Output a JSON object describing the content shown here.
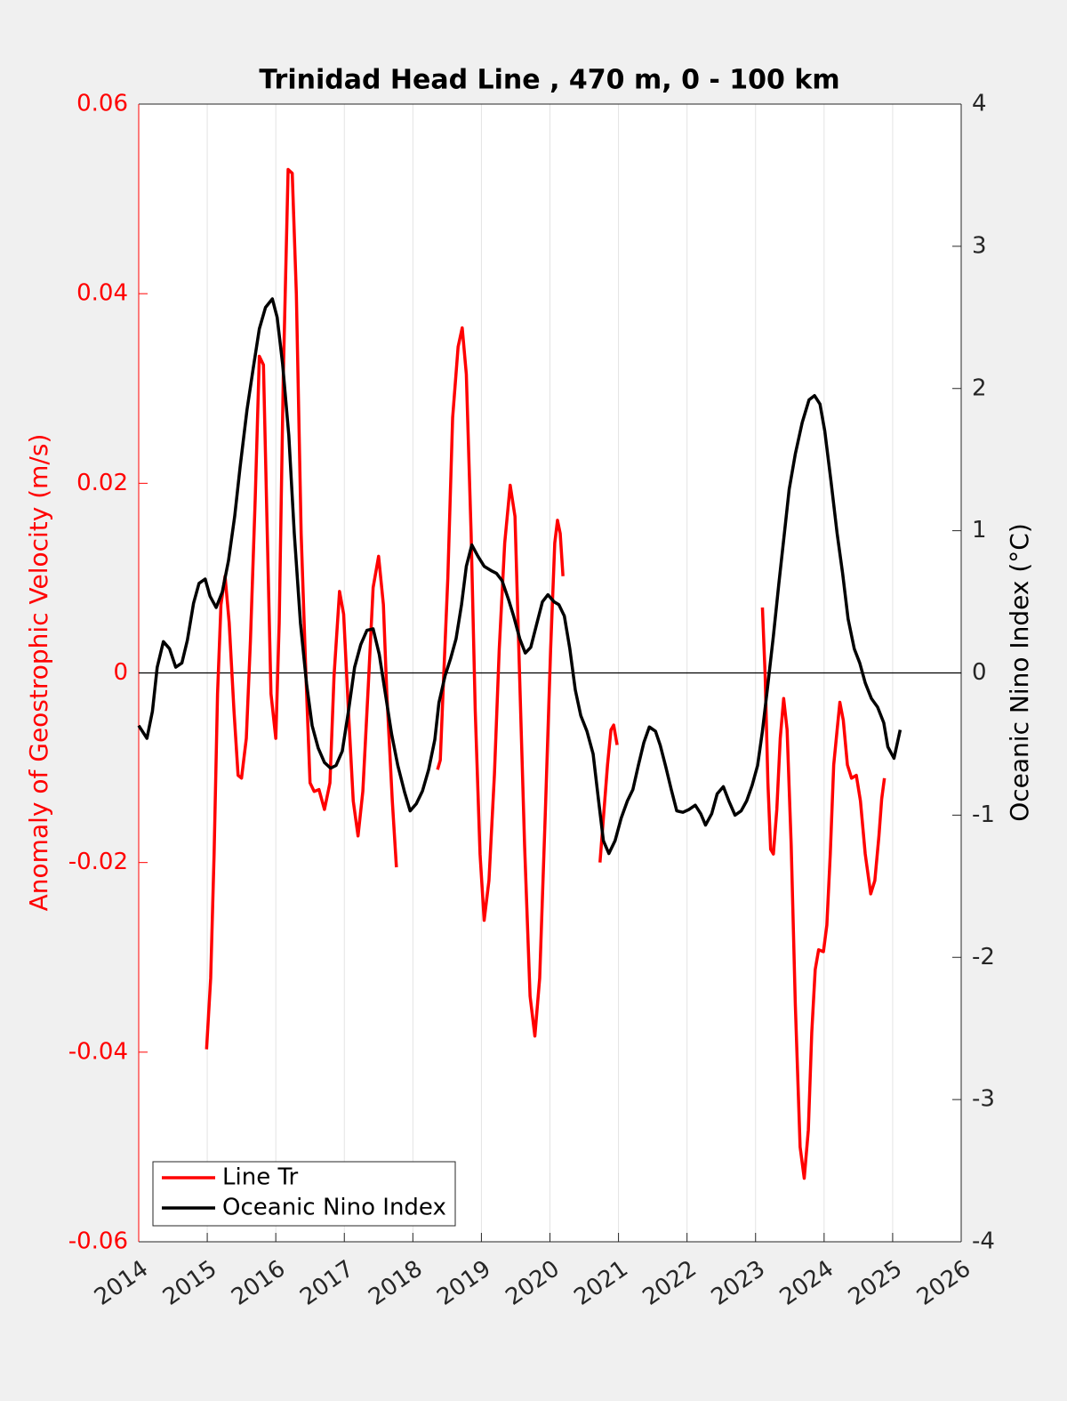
{
  "chart_data": {
    "type": "line",
    "title": "Trinidad Head Line , 470 m, 0 - 100 km",
    "ylabel": "Anomaly of Geostrophic Velocity (m/s)",
    "y2label": "Oceanic Nino Index (°C)",
    "xlim": [
      2014,
      2026
    ],
    "xticks": [
      2014,
      2015,
      2016,
      2017,
      2018,
      2019,
      2020,
      2021,
      2022,
      2023,
      2024,
      2025,
      2026
    ],
    "ylim": [
      -0.06,
      0.06
    ],
    "yticks": [
      -0.06,
      -0.04,
      -0.02,
      0,
      0.02,
      0.04,
      0.06
    ],
    "y2lim": [
      -4,
      4
    ],
    "y2ticks": [
      -4,
      -3,
      -2,
      -1,
      0,
      1,
      2,
      3,
      4
    ],
    "yaxis_color": "#ff0000",
    "reference_line": 0,
    "grid": "x",
    "legend": "lower left",
    "series": [
      {
        "name": "Line Tr",
        "color": "#ff0000",
        "x": [
          2014.99,
          2015.05,
          2015.1,
          2015.15,
          2015.2,
          2015.26,
          2015.32,
          2015.39,
          2015.45,
          2015.5,
          2015.57,
          2015.63,
          2015.7,
          2015.76,
          2015.82,
          2015.87,
          2015.93,
          2016.0,
          2016.05,
          2016.11,
          2016.18,
          2016.24,
          2016.3,
          2016.37,
          2016.44,
          2016.5,
          2016.56,
          2016.63,
          2016.71,
          2016.79,
          2016.85,
          2016.93,
          2016.99,
          2017.06,
          2017.13,
          2017.2,
          2017.27,
          2017.35,
          2017.42,
          2017.5,
          2017.57,
          2017.62,
          2017.7,
          2017.76,
          2018.0,
          2018.36,
          2018.4,
          2018.45,
          2018.51,
          2018.58,
          2018.66,
          2018.72,
          2018.78,
          2018.85,
          2018.91,
          2018.98,
          2019.04,
          2019.11,
          2019.19,
          2019.26,
          2019.34,
          2019.42,
          2019.49,
          2019.55,
          2019.63,
          2019.71,
          2019.78,
          2019.85,
          2019.93,
          2020.01,
          2020.07,
          2020.11,
          2020.15,
          2020.19,
          2020.4,
          2020.73,
          2020.78,
          2020.84,
          2020.89,
          2020.93,
          2020.98,
          2022.0,
          2023.1,
          2023.14,
          2023.18,
          2023.22,
          2023.26,
          2023.31,
          2023.36,
          2023.41,
          2023.46,
          2023.52,
          2023.58,
          2023.65,
          2023.71,
          2023.77,
          2023.82,
          2023.87,
          2023.92,
          2023.99,
          2024.04,
          2024.09,
          2024.14,
          2024.19,
          2024.23,
          2024.28,
          2024.34,
          2024.4,
          2024.47,
          2024.53,
          2024.6,
          2024.68,
          2024.74,
          2024.8,
          2024.84,
          2024.88
        ],
        "values": [
          -0.0397,
          -0.0322,
          -0.0191,
          -0.0022,
          0.0072,
          0.0102,
          0.0053,
          -0.004,
          -0.0108,
          -0.0111,
          -0.0069,
          0.0034,
          0.0184,
          0.0334,
          0.0325,
          0.0165,
          -0.0022,
          -0.0069,
          0.0053,
          0.0315,
          0.0531,
          0.0527,
          0.04,
          0.0147,
          -0.0003,
          -0.0116,
          -0.0125,
          -0.0123,
          -0.0144,
          -0.0116,
          -0.0003,
          0.0086,
          0.0062,
          -0.004,
          -0.0135,
          -0.0172,
          -0.0125,
          -0.0013,
          0.009,
          0.0123,
          0.0072,
          -0.0022,
          -0.0135,
          -0.0205,
          null,
          -0.0102,
          -0.0092,
          -0.0003,
          0.01,
          0.0269,
          0.0344,
          0.0364,
          0.0315,
          0.0147,
          -0.004,
          -0.0191,
          -0.0261,
          -0.0219,
          -0.0107,
          0.0025,
          0.0137,
          0.0198,
          0.0165,
          0.0015,
          -0.0182,
          -0.0341,
          -0.0383,
          -0.0322,
          -0.0153,
          0.0025,
          0.0137,
          0.0161,
          0.0147,
          0.0102,
          null,
          -0.02,
          -0.0153,
          -0.0097,
          -0.006,
          -0.0055,
          -0.0076,
          null,
          0.0069,
          -0.0003,
          -0.0116,
          -0.0186,
          -0.0191,
          -0.0144,
          -0.0069,
          -0.0027,
          -0.006,
          -0.0182,
          -0.035,
          -0.05,
          -0.0533,
          -0.0482,
          -0.0379,
          -0.0313,
          -0.0292,
          -0.0294,
          -0.0266,
          -0.0191,
          -0.0097,
          -0.006,
          -0.0031,
          -0.005,
          -0.0097,
          -0.0111,
          -0.0108,
          -0.0135,
          -0.0191,
          -0.0233,
          -0.0219,
          -0.0172,
          -0.0133,
          -0.0111
        ]
      },
      {
        "name": "Oceanic Nino Index",
        "color": "#000000",
        "axis": "y2",
        "x": [
          2014.0,
          2014.12,
          2014.2,
          2014.27,
          2014.36,
          2014.45,
          2014.54,
          2014.63,
          2014.71,
          2014.8,
          2014.88,
          2014.97,
          2015.04,
          2015.13,
          2015.22,
          2015.31,
          2015.4,
          2015.48,
          2015.58,
          2015.67,
          2015.76,
          2015.85,
          2015.95,
          2016.02,
          2016.1,
          2016.19,
          2016.27,
          2016.36,
          2016.45,
          2016.53,
          2016.62,
          2016.71,
          2016.8,
          2016.88,
          2016.97,
          2017.06,
          2017.15,
          2017.24,
          2017.33,
          2017.42,
          2017.51,
          2017.6,
          2017.69,
          2017.78,
          2017.88,
          2017.96,
          2018.05,
          2018.14,
          2018.23,
          2018.32,
          2018.38,
          2018.47,
          2018.55,
          2018.63,
          2018.71,
          2018.78,
          2018.86,
          2018.95,
          2019.04,
          2019.14,
          2019.22,
          2019.3,
          2019.4,
          2019.47,
          2019.56,
          2019.64,
          2019.72,
          2019.81,
          2019.89,
          2019.97,
          2020.06,
          2020.13,
          2020.21,
          2020.29,
          2020.37,
          2020.45,
          2020.54,
          2020.63,
          2020.71,
          2020.78,
          2020.86,
          2020.95,
          2021.04,
          2021.13,
          2021.21,
          2021.29,
          2021.37,
          2021.45,
          2021.54,
          2021.61,
          2021.69,
          2021.77,
          2021.85,
          2021.94,
          2022.03,
          2022.12,
          2022.2,
          2022.27,
          2022.36,
          2022.44,
          2022.53,
          2022.61,
          2022.7,
          2022.79,
          2022.87,
          2022.95,
          2023.03,
          2023.1,
          2023.18,
          2023.26,
          2023.34,
          2023.42,
          2023.49,
          2023.58,
          2023.68,
          2023.78,
          2023.86,
          2023.94,
          2024.01,
          2024.1,
          2024.19,
          2024.27,
          2024.35,
          2024.44,
          2024.52,
          2024.6,
          2024.69,
          2024.78,
          2024.87,
          2024.93,
          2025.02,
          2025.11
        ],
        "values": [
          -0.37,
          -0.46,
          -0.27,
          0.04,
          0.22,
          0.17,
          0.04,
          0.07,
          0.23,
          0.49,
          0.63,
          0.66,
          0.54,
          0.46,
          0.57,
          0.79,
          1.1,
          1.45,
          1.85,
          2.14,
          2.42,
          2.57,
          2.63,
          2.5,
          2.17,
          1.67,
          0.98,
          0.35,
          -0.08,
          -0.37,
          -0.53,
          -0.63,
          -0.67,
          -0.65,
          -0.55,
          -0.27,
          0.04,
          0.2,
          0.3,
          0.31,
          0.13,
          -0.15,
          -0.43,
          -0.65,
          -0.84,
          -0.97,
          -0.92,
          -0.83,
          -0.68,
          -0.47,
          -0.21,
          -0.02,
          0.1,
          0.24,
          0.48,
          0.75,
          0.9,
          0.82,
          0.75,
          0.72,
          0.7,
          0.65,
          0.51,
          0.4,
          0.24,
          0.14,
          0.18,
          0.35,
          0.5,
          0.55,
          0.5,
          0.48,
          0.4,
          0.17,
          -0.12,
          -0.3,
          -0.41,
          -0.57,
          -0.9,
          -1.18,
          -1.27,
          -1.18,
          -1.02,
          -0.9,
          -0.82,
          -0.65,
          -0.49,
          -0.38,
          -0.41,
          -0.51,
          -0.66,
          -0.82,
          -0.97,
          -0.98,
          -0.96,
          -0.93,
          -0.99,
          -1.07,
          -0.99,
          -0.85,
          -0.8,
          -0.9,
          -1.0,
          -0.97,
          -0.9,
          -0.79,
          -0.65,
          -0.41,
          -0.08,
          0.26,
          0.63,
          0.98,
          1.29,
          1.54,
          1.76,
          1.92,
          1.95,
          1.89,
          1.7,
          1.35,
          0.98,
          0.7,
          0.38,
          0.17,
          0.07,
          -0.07,
          -0.18,
          -0.24,
          -0.35,
          -0.52,
          -0.6,
          -0.4
        ]
      }
    ]
  }
}
